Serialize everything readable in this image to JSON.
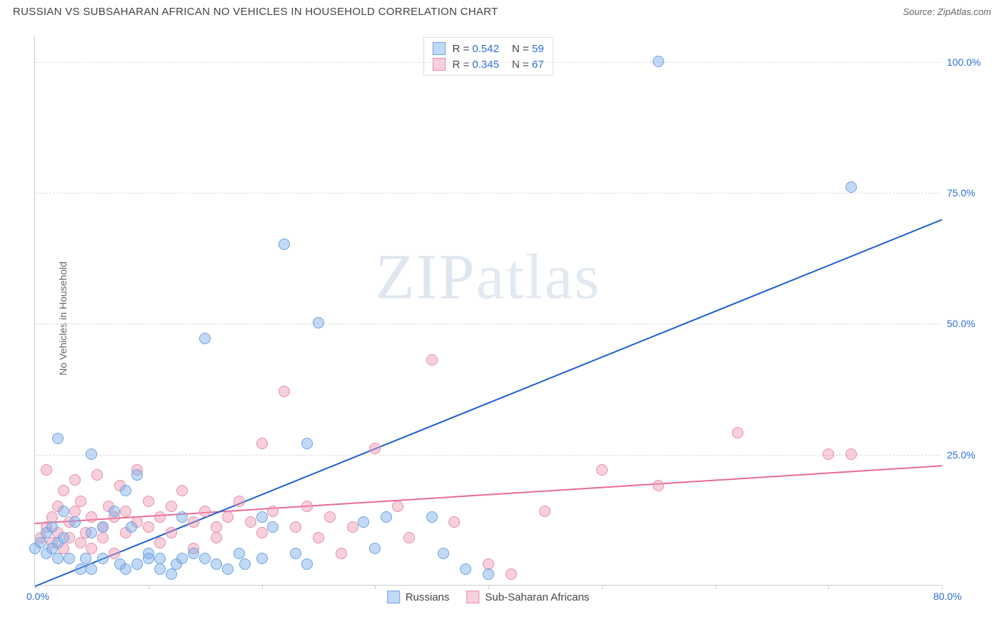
{
  "header": {
    "title": "RUSSIAN VS SUBSAHARAN AFRICAN NO VEHICLES IN HOUSEHOLD CORRELATION CHART",
    "source_label": "Source: ",
    "source_name": "ZipAtlas.com"
  },
  "axes": {
    "ylabel": "No Vehicles in Household",
    "xlim": [
      0,
      80
    ],
    "ylim": [
      0,
      105
    ],
    "xticks": [
      0,
      10,
      20,
      30,
      40,
      50,
      60,
      70,
      80
    ],
    "xticklabels": {
      "0": "0.0%",
      "80": "80.0%"
    },
    "yticks": [
      25,
      50,
      75,
      100
    ],
    "yticklabels": [
      "25.0%",
      "50.0%",
      "75.0%",
      "100.0%"
    ],
    "grid_color": "#dddddd",
    "axis_color": "#cccccc",
    "tick_label_color": "#2a6dd6",
    "label_color": "#666666"
  },
  "watermark": "ZIPatlas",
  "series": {
    "a": {
      "name": "Russians",
      "color_fill": "rgba(120,170,235,0.45)",
      "color_stroke": "#6fa3e0",
      "line_color": "#1f5fd0",
      "R_label": "R = ",
      "R": "0.542",
      "N_label": "N = ",
      "N": "59",
      "regline": {
        "x0": 0,
        "y0": 0,
        "x1": 80,
        "y1": 70
      },
      "marker_radius": 8,
      "points": [
        [
          0,
          7
        ],
        [
          0.5,
          8
        ],
        [
          1,
          6
        ],
        [
          1,
          10
        ],
        [
          1.5,
          7
        ],
        [
          1.5,
          11
        ],
        [
          2,
          8
        ],
        [
          2,
          5
        ],
        [
          2,
          28
        ],
        [
          2.5,
          14
        ],
        [
          2.5,
          9
        ],
        [
          3,
          5
        ],
        [
          3.5,
          12
        ],
        [
          4,
          3
        ],
        [
          4.5,
          5
        ],
        [
          5,
          10
        ],
        [
          5,
          25
        ],
        [
          5,
          3
        ],
        [
          6,
          5
        ],
        [
          6,
          11
        ],
        [
          7,
          14
        ],
        [
          7.5,
          4
        ],
        [
          8,
          3
        ],
        [
          8,
          18
        ],
        [
          8.5,
          11
        ],
        [
          9,
          4
        ],
        [
          9,
          21
        ],
        [
          10,
          6
        ],
        [
          10,
          5
        ],
        [
          11,
          3
        ],
        [
          11,
          5
        ],
        [
          12,
          2
        ],
        [
          12.5,
          4
        ],
        [
          13,
          5
        ],
        [
          13,
          13
        ],
        [
          14,
          6
        ],
        [
          15,
          5
        ],
        [
          15,
          47
        ],
        [
          16,
          4
        ],
        [
          17,
          3
        ],
        [
          18,
          6
        ],
        [
          18.5,
          4
        ],
        [
          20,
          5
        ],
        [
          20,
          13
        ],
        [
          21,
          11
        ],
        [
          22,
          65
        ],
        [
          23,
          6
        ],
        [
          24,
          4
        ],
        [
          24,
          27
        ],
        [
          25,
          50
        ],
        [
          29,
          12
        ],
        [
          30,
          7
        ],
        [
          31,
          13
        ],
        [
          35,
          13
        ],
        [
          36,
          6
        ],
        [
          38,
          3
        ],
        [
          40,
          2
        ],
        [
          55,
          100
        ],
        [
          72,
          76
        ]
      ]
    },
    "b": {
      "name": "Sub-Saharan Africans",
      "color_fill": "rgba(240,150,175,0.45)",
      "color_stroke": "#e58fa9",
      "line_color": "#e86b93",
      "R_label": "R = ",
      "R": "0.345",
      "N_label": "N = ",
      "N": "67",
      "regline": {
        "x0": 0,
        "y0": 12,
        "x1": 80,
        "y1": 23
      },
      "marker_radius": 8,
      "points": [
        [
          0.5,
          9
        ],
        [
          1,
          11
        ],
        [
          1,
          22
        ],
        [
          1.5,
          8
        ],
        [
          1.5,
          13
        ],
        [
          2,
          10
        ],
        [
          2,
          15
        ],
        [
          2.5,
          7
        ],
        [
          2.5,
          18
        ],
        [
          3,
          9
        ],
        [
          3,
          12
        ],
        [
          3.5,
          14
        ],
        [
          3.5,
          20
        ],
        [
          4,
          8
        ],
        [
          4,
          16
        ],
        [
          4.5,
          10
        ],
        [
          5,
          13
        ],
        [
          5,
          7
        ],
        [
          5.5,
          21
        ],
        [
          6,
          11
        ],
        [
          6,
          9
        ],
        [
          6.5,
          15
        ],
        [
          7,
          13
        ],
        [
          7,
          6
        ],
        [
          7.5,
          19
        ],
        [
          8,
          10
        ],
        [
          8,
          14
        ],
        [
          9,
          12
        ],
        [
          9,
          22
        ],
        [
          10,
          11
        ],
        [
          10,
          16
        ],
        [
          11,
          13
        ],
        [
          11,
          8
        ],
        [
          12,
          10
        ],
        [
          12,
          15
        ],
        [
          13,
          18
        ],
        [
          14,
          12
        ],
        [
          14,
          7
        ],
        [
          15,
          14
        ],
        [
          16,
          11
        ],
        [
          16,
          9
        ],
        [
          17,
          13
        ],
        [
          18,
          16
        ],
        [
          19,
          12
        ],
        [
          20,
          10
        ],
        [
          20,
          27
        ],
        [
          21,
          14
        ],
        [
          22,
          37
        ],
        [
          23,
          11
        ],
        [
          24,
          15
        ],
        [
          25,
          9
        ],
        [
          26,
          13
        ],
        [
          27,
          6
        ],
        [
          28,
          11
        ],
        [
          30,
          26
        ],
        [
          32,
          15
        ],
        [
          33,
          9
        ],
        [
          35,
          43
        ],
        [
          37,
          12
        ],
        [
          40,
          4
        ],
        [
          42,
          2
        ],
        [
          45,
          14
        ],
        [
          50,
          22
        ],
        [
          55,
          19
        ],
        [
          62,
          29
        ],
        [
          70,
          25
        ],
        [
          72,
          25
        ]
      ]
    }
  },
  "legend_top": {
    "swatch_size": 18
  },
  "legend_bottom": {
    "swatch_size": 18
  }
}
